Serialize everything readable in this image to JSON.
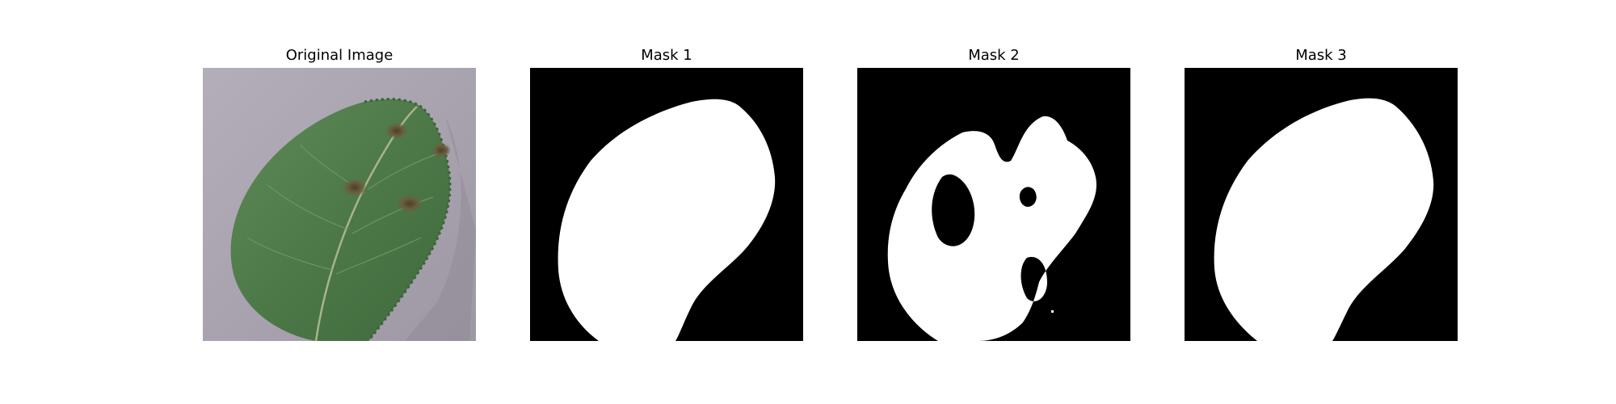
{
  "panels": [
    {
      "title": "Original Image"
    },
    {
      "title": "Mask 1"
    },
    {
      "title": "Mask 2"
    },
    {
      "title": "Mask 3"
    }
  ],
  "colors": {
    "background": "#ffffff",
    "backdrop": "#aca7b2",
    "leaf": "#4f7a4a",
    "lesion": "#6a5f43",
    "mask_fg": "#ffffff",
    "mask_bg": "#000000"
  }
}
